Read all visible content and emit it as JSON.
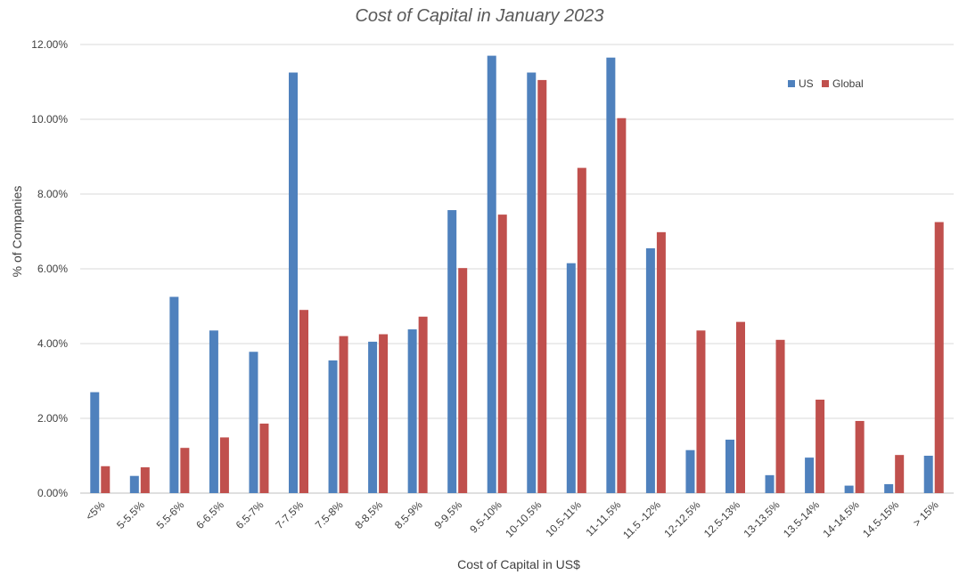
{
  "chart_data": {
    "type": "bar",
    "title": "Cost of Capital in January 2023",
    "xlabel": "Cost of Capital in US$",
    "ylabel": "% of Companies",
    "ylim": [
      0,
      0.12
    ],
    "yticks": [
      "0.00%",
      "2.00%",
      "4.00%",
      "6.00%",
      "8.00%",
      "10.00%",
      "12.00%"
    ],
    "grid": true,
    "legend_position": "top-right",
    "categories": [
      "<5%",
      "5-5.5%",
      "5.5-6%",
      "6-6.5%",
      "6.5-7%",
      "7-7.5%",
      "7.5-8%",
      "8-8.5%",
      "8.5-9%",
      "9-9.5%",
      "9.5-10%",
      "10-10.5%",
      "10.5-11%",
      "11-11.5%",
      "11.5 -12%",
      "12-12.5%",
      "12.5-13%",
      "13-13.5%",
      "13.5-14%",
      "14-14.5%",
      "14.5-15%",
      "> 15%"
    ],
    "series": [
      {
        "name": "US",
        "color": "#4f81bd",
        "values": [
          0.027,
          0.0046,
          0.0525,
          0.0435,
          0.0378,
          0.1125,
          0.0355,
          0.0405,
          0.0438,
          0.0757,
          0.117,
          0.1125,
          0.0615,
          0.1165,
          0.0655,
          0.0115,
          0.0143,
          0.0048,
          0.0095,
          0.002,
          0.0024,
          0.01
        ]
      },
      {
        "name": "Global",
        "color": "#c0504d",
        "values": [
          0.0072,
          0.0069,
          0.0121,
          0.0149,
          0.0186,
          0.049,
          0.042,
          0.0425,
          0.0472,
          0.0602,
          0.0745,
          0.1105,
          0.087,
          0.1003,
          0.0698,
          0.0435,
          0.0458,
          0.041,
          0.025,
          0.0193,
          0.0102,
          0.0725
        ]
      }
    ]
  }
}
